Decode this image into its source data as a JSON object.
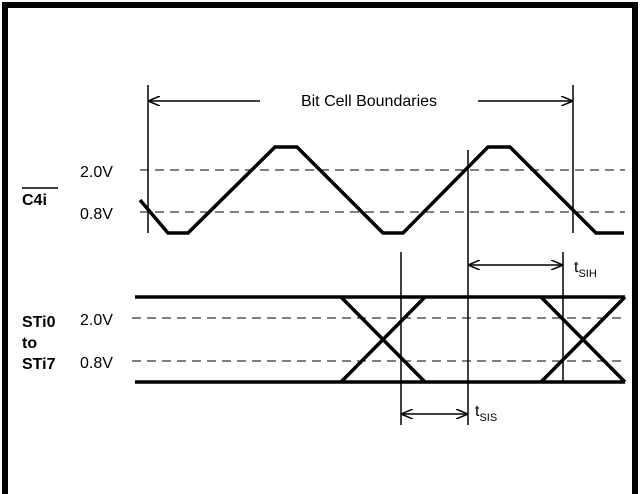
{
  "diagram": {
    "bit_cell_label": "Bit Cell Boundaries",
    "clock": {
      "signal_name": "C4i",
      "high_threshold": "2.0V",
      "low_threshold": "0.8V"
    },
    "data": {
      "signal_name_line1": "STi0",
      "signal_name_line2": "to",
      "signal_name_line3": "STi7",
      "high_threshold": "2.0V",
      "low_threshold": "0.8V"
    },
    "hold_time": {
      "main": "t",
      "sub": "SIH"
    },
    "setup_time": {
      "main": "t",
      "sub": "SIS"
    }
  }
}
